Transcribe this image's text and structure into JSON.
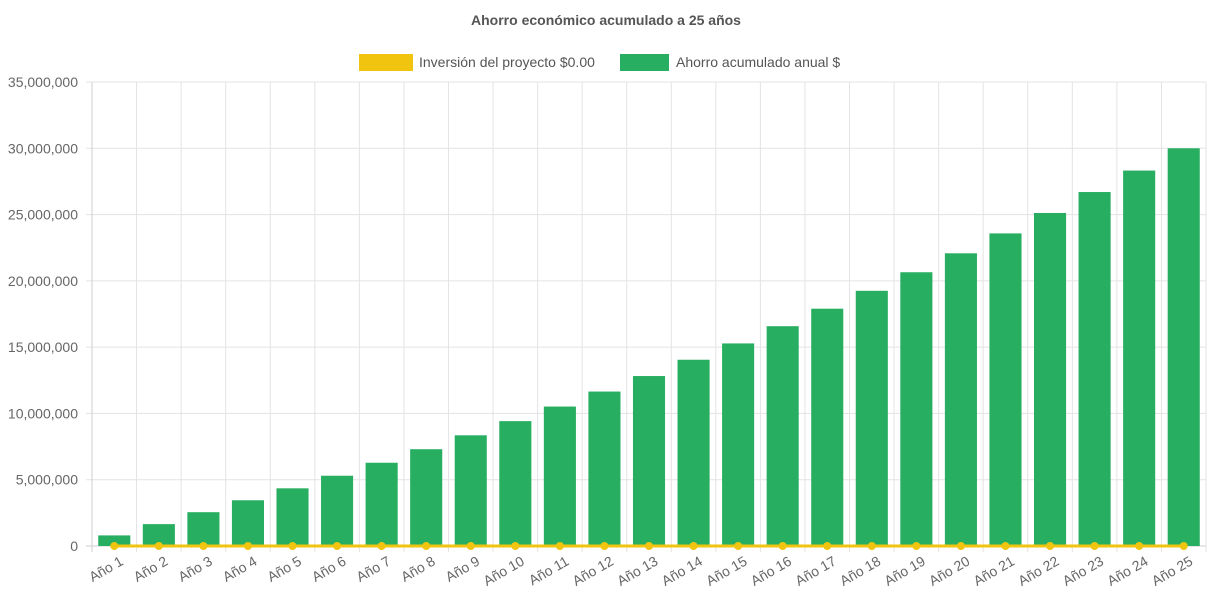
{
  "chart_data": {
    "type": "bar",
    "title": "Ahorro económico acumulado a 25 años",
    "categories": [
      "Año 1",
      "Año 2",
      "Año 3",
      "Año 4",
      "Año 5",
      "Año 6",
      "Año 7",
      "Año 8",
      "Año 9",
      "Año 10",
      "Año 11",
      "Año 12",
      "Año 13",
      "Año 14",
      "Año 15",
      "Año 16",
      "Año 17",
      "Año 18",
      "Año 19",
      "Año 20",
      "Año 21",
      "Año 22",
      "Año 23",
      "Año 24",
      "Año 25"
    ],
    "series": [
      {
        "name": "Inversión del proyecto $0.00",
        "type": "line",
        "color": "#f1c40f",
        "values": [
          0,
          0,
          0,
          0,
          0,
          0,
          0,
          0,
          0,
          0,
          0,
          0,
          0,
          0,
          0,
          0,
          0,
          0,
          0,
          0,
          0,
          0,
          0,
          0,
          0
        ]
      },
      {
        "name": "Ahorro acumulado anual $",
        "type": "bar",
        "color": "#27ae60",
        "values": [
          800000,
          1650000,
          2550000,
          3450000,
          4350000,
          5300000,
          6280000,
          7300000,
          8350000,
          9420000,
          10520000,
          11650000,
          12820000,
          14050000,
          15280000,
          16580000,
          17900000,
          19250000,
          20650000,
          22080000,
          23580000,
          25120000,
          26700000,
          28320000,
          30000000
        ]
      }
    ],
    "xlabel": "",
    "ylabel": "",
    "ylim": [
      0,
      35000000
    ],
    "yticks": [
      "0",
      "5,000,000",
      "10,000,000",
      "15,000,000",
      "20,000,000",
      "25,000,000",
      "30,000,000",
      "35,000,000"
    ],
    "grid": true,
    "legend_position": "top"
  }
}
